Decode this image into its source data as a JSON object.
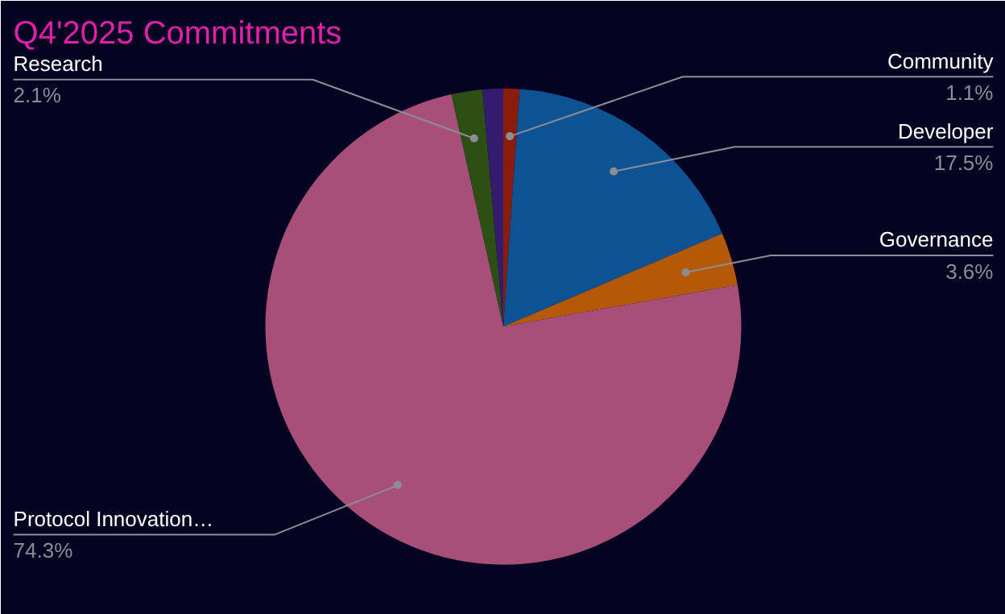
{
  "chart_data": {
    "type": "pie",
    "title": "Q4'2025 Commitments",
    "categories": [
      "Community",
      "Developer",
      "Governance",
      "Protocol Innovation…",
      "Research",
      null
    ],
    "values": [
      1.1,
      17.5,
      3.6,
      74.3,
      2.1,
      1.4
    ],
    "colors": [
      "#8a1c0c",
      "#0d5394",
      "#b45a06",
      "#a84f79",
      "#2c4f14",
      "#351b6e"
    ],
    "value_labels": [
      "1.1%",
      "17.5%",
      "3.6%",
      "74.3%",
      "2.1%",
      null
    ]
  }
}
